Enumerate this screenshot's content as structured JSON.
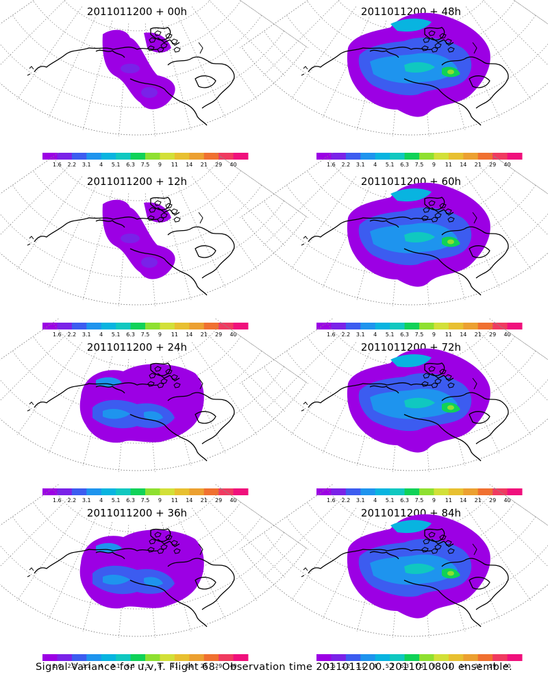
{
  "caption": "Signal Variance for u,v,T. Flight 68. Observation time 2011011200. 2011010800 ensemble.",
  "panels": [
    {
      "title": "2011011200 + 00h",
      "extent": "small"
    },
    {
      "title": "2011011200 + 48h",
      "extent": "large"
    },
    {
      "title": "2011011200 + 12h",
      "extent": "small"
    },
    {
      "title": "2011011200 + 60h",
      "extent": "large"
    },
    {
      "title": "2011011200 + 24h",
      "extent": "medium"
    },
    {
      "title": "2011011200 + 72h",
      "extent": "large"
    },
    {
      "title": "2011011200 + 36h",
      "extent": "medium"
    },
    {
      "title": "2011011200 + 84h",
      "extent": "large"
    }
  ],
  "colorbar": {
    "labels": [
      "1.6",
      "2.2",
      "3.1",
      "4",
      "5.1",
      "6.3",
      "7.5",
      "9",
      "11",
      "14",
      "21",
      "29",
      "40"
    ],
    "colors": [
      "#9c00e4",
      "#7a22e8",
      "#3c5cf0",
      "#1e94ee",
      "#08b4e0",
      "#10c8c0",
      "#10d258",
      "#8ee030",
      "#d2e038",
      "#e8c030",
      "#eca030",
      "#f07030",
      "#f03a60",
      "#f0107c"
    ]
  }
}
